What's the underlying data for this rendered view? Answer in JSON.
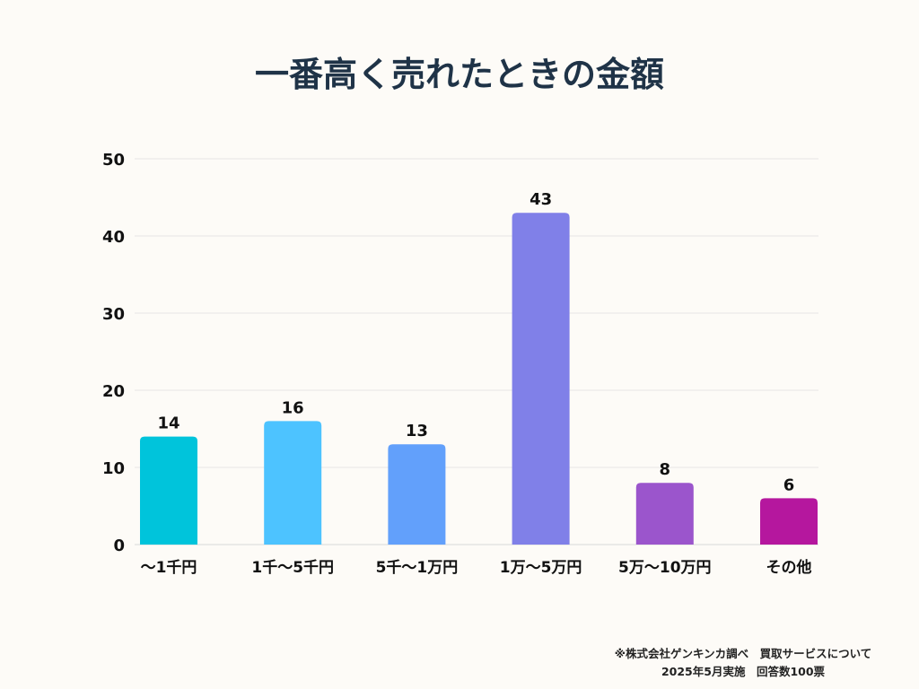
{
  "chart_data": {
    "type": "bar",
    "title": "一番高く売れたときの金額",
    "categories": [
      "〜1千円",
      "1千〜5千円",
      "5千〜1万円",
      "1万〜5万円",
      "5万〜10万円",
      "その他"
    ],
    "values": [
      14,
      16,
      13,
      43,
      8,
      6
    ],
    "colors": [
      "#00c4db",
      "#4dc3ff",
      "#62a0fb",
      "#8080e8",
      "#9b55cc",
      "#b5179e"
    ],
    "ylim": [
      0,
      50
    ],
    "yticks": [
      0,
      10,
      20,
      30,
      40,
      50
    ],
    "grid": true,
    "xlabel": "",
    "ylabel": ""
  },
  "footer": {
    "line1": "※株式会社ゲンキンカ調べ　買取サービスについて",
    "line2": "2025年5月実施　回答数100票"
  }
}
